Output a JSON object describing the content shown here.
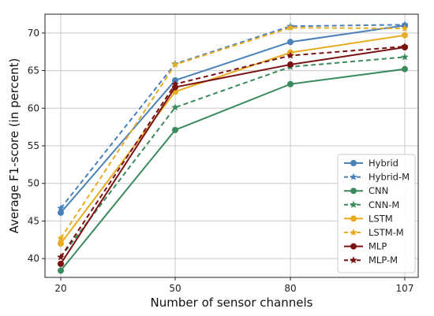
{
  "chart_data": {
    "type": "line",
    "xlabel": "Number of sensor channels",
    "ylabel": "Average F1-score (in percent)",
    "categories": [
      "20",
      "50",
      "80",
      "107"
    ],
    "yticks": [
      40,
      45,
      50,
      55,
      60,
      65,
      70
    ],
    "ylim": [
      37.5,
      72.5
    ],
    "grid": true,
    "legend_position": "bottom-right",
    "series": [
      {
        "name": "Hybrid",
        "color": "#4a81b8",
        "dash": false,
        "marker": "circle",
        "values": [
          46.1,
          63.7,
          68.8,
          71.0
        ]
      },
      {
        "name": "Hybrid-M",
        "color": "#4a81b8",
        "dash": true,
        "marker": "star",
        "values": [
          46.7,
          65.9,
          70.9,
          71.1
        ]
      },
      {
        "name": "CNN",
        "color": "#3a8a5e",
        "dash": false,
        "marker": "circle",
        "values": [
          38.4,
          57.1,
          63.2,
          65.2
        ]
      },
      {
        "name": "CNN-M",
        "color": "#3a8a5e",
        "dash": true,
        "marker": "star",
        "values": [
          40.2,
          60.1,
          65.5,
          66.8
        ]
      },
      {
        "name": "LSTM",
        "color": "#e7ac22",
        "dash": false,
        "marker": "circle",
        "values": [
          42.0,
          62.2,
          67.4,
          69.7
        ]
      },
      {
        "name": "LSTM-M",
        "color": "#e7ac22",
        "dash": true,
        "marker": "star",
        "values": [
          42.7,
          65.8,
          70.7,
          70.6
        ]
      },
      {
        "name": "MLP",
        "color": "#7b1212",
        "dash": false,
        "marker": "circle",
        "values": [
          39.3,
          62.8,
          65.8,
          68.1
        ]
      },
      {
        "name": "MLP-M",
        "color": "#7b1212",
        "dash": true,
        "marker": "star",
        "values": [
          40.2,
          63.2,
          67.0,
          68.2
        ]
      }
    ]
  }
}
